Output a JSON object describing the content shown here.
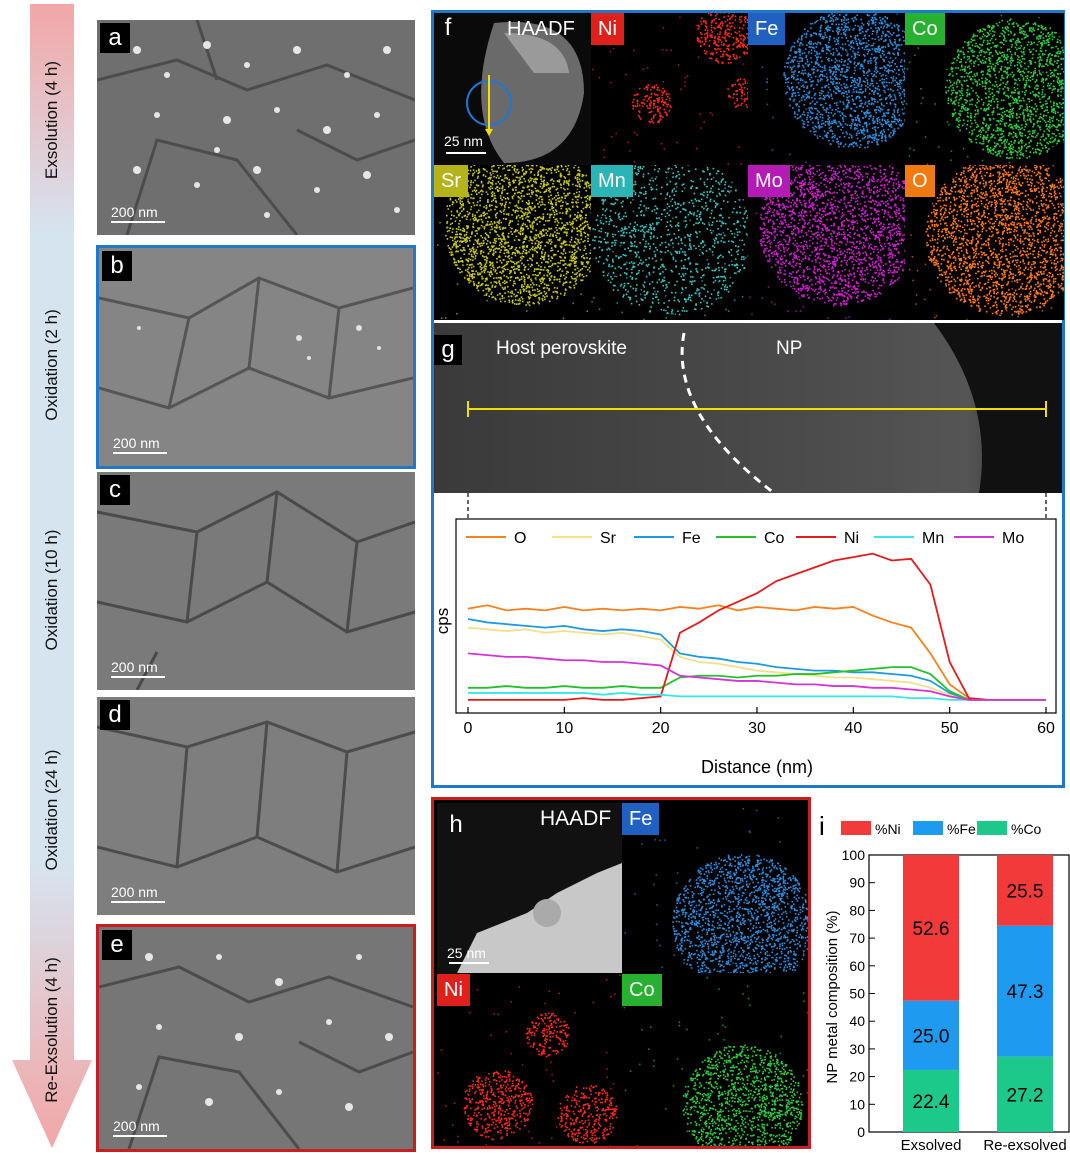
{
  "left_arrow": {
    "stages": [
      "Exsolution (4 h)",
      "Oxidation (2 h)",
      "Oxidation (10 h)",
      "Oxidation (24 h)",
      "Re-Exsolution (4 h)"
    ]
  },
  "sem_panels": [
    {
      "label": "a",
      "scale": "200 nm"
    },
    {
      "label": "b",
      "scale": "200 nm"
    },
    {
      "label": "c",
      "scale": "200 nm"
    },
    {
      "label": "d",
      "scale": "200 nm"
    },
    {
      "label": "e",
      "scale": "200 nm"
    }
  ],
  "panel_f": {
    "label": "f",
    "tiles": [
      "HAADF",
      "Ni",
      "Fe",
      "Co",
      "Sr",
      "Mn",
      "Mo",
      "O"
    ],
    "scale": "25 nm",
    "colors": {
      "Ni": "#ff2a1a",
      "Fe": "#2b8fe0",
      "Co": "#2ecc40",
      "Sr": "#c8c81e",
      "Mn": "#36c8c8",
      "Mo": "#d21ed2",
      "O": "#ff7a1a"
    }
  },
  "panel_g": {
    "label": "g",
    "region_left": "Host perovskite",
    "region_right": "NP"
  },
  "panel_h": {
    "label": "h",
    "tiles": [
      "HAADF",
      "Fe",
      "Ni",
      "Co"
    ],
    "scale": "25 nm"
  },
  "panel_i": {
    "label": "i"
  },
  "chart_data": [
    {
      "type": "line",
      "xlabel": "Distance (nm)",
      "ylabel": "cps",
      "xlim": [
        0,
        60
      ],
      "xticks": [
        0,
        10,
        20,
        30,
        40,
        50,
        60
      ],
      "legend_position": "top",
      "x": [
        0,
        2,
        4,
        6,
        8,
        10,
        12,
        14,
        16,
        18,
        20,
        22,
        24,
        26,
        28,
        30,
        32,
        34,
        36,
        38,
        40,
        42,
        44,
        46,
        48,
        50,
        52,
        54,
        56,
        58,
        60
      ],
      "series": [
        {
          "name": "O",
          "color": "#f5821f",
          "values": [
            0.56,
            0.58,
            0.55,
            0.56,
            0.55,
            0.57,
            0.55,
            0.56,
            0.55,
            0.56,
            0.55,
            0.57,
            0.56,
            0.58,
            0.55,
            0.57,
            0.56,
            0.55,
            0.57,
            0.56,
            0.57,
            0.52,
            0.48,
            0.45,
            0.3,
            0.12,
            0.04,
            0.03,
            0.03,
            0.03,
            0.03
          ]
        },
        {
          "name": "Sr",
          "color": "#f2e08a",
          "values": [
            0.45,
            0.44,
            0.43,
            0.44,
            0.42,
            0.43,
            0.42,
            0.41,
            0.42,
            0.4,
            0.38,
            0.28,
            0.25,
            0.24,
            0.22,
            0.2,
            0.19,
            0.18,
            0.17,
            0.16,
            0.16,
            0.15,
            0.14,
            0.13,
            0.1,
            0.06,
            0.03,
            0.03,
            0.03,
            0.03,
            0.03
          ]
        },
        {
          "name": "Fe",
          "color": "#1d9ae0",
          "values": [
            0.5,
            0.48,
            0.47,
            0.46,
            0.45,
            0.46,
            0.44,
            0.43,
            0.44,
            0.43,
            0.41,
            0.3,
            0.28,
            0.27,
            0.25,
            0.24,
            0.22,
            0.21,
            0.2,
            0.2,
            0.19,
            0.19,
            0.18,
            0.17,
            0.14,
            0.07,
            0.03,
            0.03,
            0.03,
            0.03,
            0.03
          ]
        },
        {
          "name": "Co",
          "color": "#22c22a",
          "values": [
            0.1,
            0.1,
            0.11,
            0.1,
            0.1,
            0.11,
            0.1,
            0.1,
            0.11,
            0.1,
            0.1,
            0.16,
            0.17,
            0.17,
            0.16,
            0.17,
            0.17,
            0.18,
            0.18,
            0.19,
            0.2,
            0.21,
            0.22,
            0.22,
            0.18,
            0.08,
            0.03,
            0.03,
            0.03,
            0.03,
            0.03
          ]
        },
        {
          "name": "Ni",
          "color": "#e51b1b",
          "values": [
            0.03,
            0.03,
            0.03,
            0.03,
            0.03,
            0.03,
            0.04,
            0.03,
            0.03,
            0.04,
            0.05,
            0.42,
            0.48,
            0.55,
            0.6,
            0.65,
            0.72,
            0.76,
            0.8,
            0.84,
            0.86,
            0.88,
            0.84,
            0.85,
            0.7,
            0.25,
            0.04,
            0.03,
            0.03,
            0.03,
            0.03
          ]
        },
        {
          "name": "Mn",
          "color": "#37e6e6",
          "values": [
            0.07,
            0.07,
            0.07,
            0.07,
            0.07,
            0.07,
            0.07,
            0.06,
            0.07,
            0.06,
            0.06,
            0.05,
            0.05,
            0.05,
            0.05,
            0.05,
            0.05,
            0.05,
            0.05,
            0.05,
            0.05,
            0.05,
            0.05,
            0.04,
            0.04,
            0.03,
            0.03,
            0.03,
            0.03,
            0.03,
            0.03
          ]
        },
        {
          "name": "Mo",
          "color": "#d633d6",
          "values": [
            0.3,
            0.29,
            0.28,
            0.28,
            0.27,
            0.26,
            0.26,
            0.25,
            0.25,
            0.24,
            0.23,
            0.17,
            0.16,
            0.15,
            0.14,
            0.14,
            0.13,
            0.12,
            0.12,
            0.11,
            0.11,
            0.1,
            0.1,
            0.09,
            0.08,
            0.05,
            0.03,
            0.03,
            0.03,
            0.03,
            0.03
          ]
        }
      ]
    },
    {
      "type": "bar",
      "stacked": true,
      "ylabel": "NP metal composition (%)",
      "ylim": [
        0,
        100
      ],
      "yticks": [
        0,
        10,
        20,
        30,
        40,
        50,
        60,
        70,
        80,
        90,
        100
      ],
      "categories": [
        "Exsolved",
        "Re-exsolved"
      ],
      "legend_position": "top",
      "series": [
        {
          "name": "%Co",
          "color": "#1dc98a",
          "values": [
            22.4,
            27.2
          ]
        },
        {
          "name": "%Fe",
          "color": "#1e9bf0",
          "values": [
            25.0,
            47.3
          ]
        },
        {
          "name": "%Ni",
          "color": "#f23a3a",
          "values": [
            52.6,
            25.5
          ]
        }
      ],
      "labels": [
        [
          "22.4",
          "25.0",
          "52.6"
        ],
        [
          "27.2",
          "47.3",
          "25.5"
        ]
      ]
    }
  ]
}
